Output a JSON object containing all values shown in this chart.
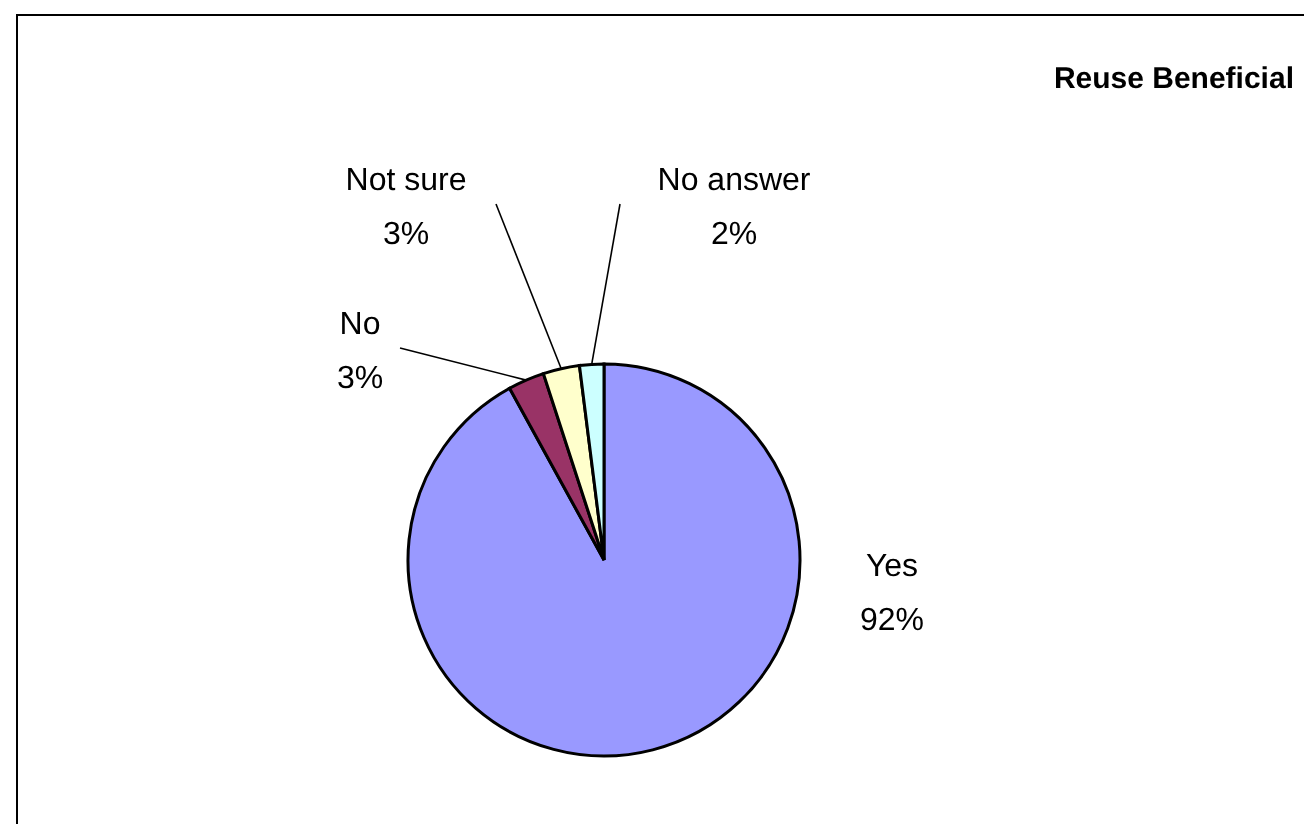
{
  "chart_data": {
    "type": "pie",
    "title": "Reuse Beneficial",
    "categories": [
      "Yes",
      "No",
      "Not sure",
      "No answer"
    ],
    "values": [
      92,
      3,
      3,
      2
    ],
    "value_labels": [
      "92%",
      "3%",
      "3%",
      "2%"
    ],
    "colors": [
      "#9999ff",
      "#993366",
      "#ffffcc",
      "#ccffff"
    ]
  }
}
